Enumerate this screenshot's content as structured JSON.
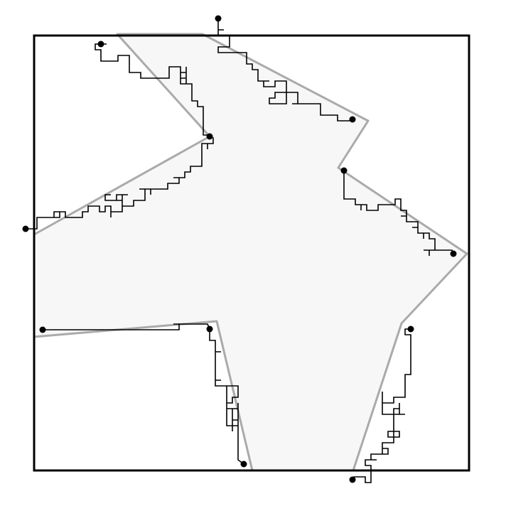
{
  "diagram": {
    "kind": "lattice-paths-over-polygon-region",
    "region_fill": "#f7f7f7",
    "region_outline_color": "#aaaaaa",
    "path_color": "#000000",
    "frame_color": "#000000",
    "endpoint_color": "#000000",
    "endpoint_count": 12,
    "path_count": 6
  }
}
